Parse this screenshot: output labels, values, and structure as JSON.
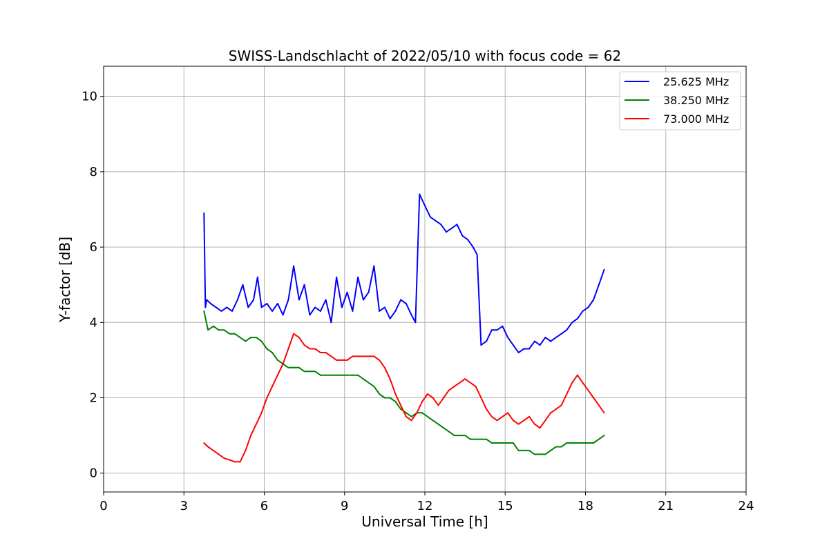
{
  "chart_data": {
    "type": "line",
    "title": "SWISS-Landschlacht of 2022/05/10 with focus code = 62",
    "xlabel": "Universal Time [h]",
    "ylabel": "Y-factor [dB]",
    "xlim": [
      0,
      24
    ],
    "ylim": [
      -0.5,
      10.8
    ],
    "xticks": [
      0,
      3,
      6,
      9,
      12,
      15,
      18,
      21,
      24
    ],
    "yticks": [
      0,
      2,
      4,
      6,
      8,
      10
    ],
    "grid": true,
    "legend_position": "top-right",
    "series": [
      {
        "name": "25.625 MHz",
        "color": "#0000ff",
        "x": [
          3.75,
          3.8,
          3.85,
          4.0,
          4.2,
          4.4,
          4.6,
          4.8,
          5.0,
          5.2,
          5.4,
          5.6,
          5.75,
          5.9,
          6.1,
          6.3,
          6.5,
          6.7,
          6.9,
          7.1,
          7.3,
          7.5,
          7.7,
          7.9,
          8.1,
          8.3,
          8.5,
          8.7,
          8.9,
          9.1,
          9.3,
          9.5,
          9.7,
          9.9,
          10.1,
          10.3,
          10.5,
          10.7,
          10.9,
          11.1,
          11.3,
          11.5,
          11.65,
          11.8,
          12.0,
          12.2,
          12.4,
          12.6,
          12.8,
          13.0,
          13.2,
          13.4,
          13.6,
          13.8,
          13.95,
          14.1,
          14.3,
          14.5,
          14.7,
          14.9,
          15.1,
          15.3,
          15.5,
          15.7,
          15.9,
          16.1,
          16.3,
          16.5,
          16.7,
          16.9,
          17.1,
          17.3,
          17.5,
          17.7,
          17.9,
          18.1,
          18.3,
          18.5,
          18.7
        ],
        "y": [
          6.9,
          4.4,
          4.6,
          4.5,
          4.4,
          4.3,
          4.4,
          4.3,
          4.6,
          5.0,
          4.4,
          4.6,
          5.2,
          4.4,
          4.5,
          4.3,
          4.5,
          4.2,
          4.6,
          5.5,
          4.6,
          5.0,
          4.2,
          4.4,
          4.3,
          4.6,
          4.0,
          5.2,
          4.4,
          4.8,
          4.3,
          5.2,
          4.6,
          4.8,
          5.5,
          4.3,
          4.4,
          4.1,
          4.3,
          4.6,
          4.5,
          4.2,
          4.0,
          7.4,
          7.1,
          6.8,
          6.7,
          6.6,
          6.4,
          6.5,
          6.6,
          6.3,
          6.2,
          6.0,
          5.8,
          3.4,
          3.5,
          3.8,
          3.8,
          3.9,
          3.6,
          3.4,
          3.2,
          3.3,
          3.3,
          3.5,
          3.4,
          3.6,
          3.5,
          3.6,
          3.7,
          3.8,
          4.0,
          4.1,
          4.3,
          4.4,
          4.6,
          5.0,
          5.4
        ]
      },
      {
        "name": "38.250 MHz",
        "color": "#008000",
        "x": [
          3.75,
          3.9,
          4.1,
          4.3,
          4.5,
          4.7,
          4.9,
          5.1,
          5.3,
          5.5,
          5.7,
          5.9,
          6.1,
          6.3,
          6.5,
          6.7,
          6.9,
          7.1,
          7.3,
          7.5,
          7.7,
          7.9,
          8.1,
          8.3,
          8.5,
          8.7,
          8.9,
          9.1,
          9.3,
          9.5,
          9.7,
          9.9,
          10.1,
          10.3,
          10.5,
          10.7,
          10.9,
          11.1,
          11.3,
          11.5,
          11.7,
          11.9,
          12.1,
          12.3,
          12.5,
          12.7,
          12.9,
          13.1,
          13.3,
          13.5,
          13.7,
          13.9,
          14.1,
          14.3,
          14.5,
          14.7,
          14.9,
          15.1,
          15.3,
          15.5,
          15.7,
          15.9,
          16.1,
          16.3,
          16.5,
          16.7,
          16.9,
          17.1,
          17.3,
          17.5,
          17.7,
          17.9,
          18.1,
          18.3,
          18.5,
          18.7
        ],
        "y": [
          4.3,
          3.8,
          3.9,
          3.8,
          3.8,
          3.7,
          3.7,
          3.6,
          3.5,
          3.6,
          3.6,
          3.5,
          3.3,
          3.2,
          3.0,
          2.9,
          2.8,
          2.8,
          2.8,
          2.7,
          2.7,
          2.7,
          2.6,
          2.6,
          2.6,
          2.6,
          2.6,
          2.6,
          2.6,
          2.6,
          2.5,
          2.4,
          2.3,
          2.1,
          2.0,
          2.0,
          1.9,
          1.7,
          1.6,
          1.5,
          1.6,
          1.6,
          1.5,
          1.4,
          1.3,
          1.2,
          1.1,
          1.0,
          1.0,
          1.0,
          0.9,
          0.9,
          0.9,
          0.9,
          0.8,
          0.8,
          0.8,
          0.8,
          0.8,
          0.6,
          0.6,
          0.6,
          0.5,
          0.5,
          0.5,
          0.6,
          0.7,
          0.7,
          0.8,
          0.8,
          0.8,
          0.8,
          0.8,
          0.8,
          0.9,
          1.0
        ]
      },
      {
        "name": "73.000 MHz",
        "color": "#ff0000",
        "x": [
          3.75,
          3.9,
          4.1,
          4.3,
          4.5,
          4.7,
          4.9,
          5.1,
          5.3,
          5.5,
          5.7,
          5.9,
          6.1,
          6.3,
          6.5,
          6.7,
          6.9,
          7.1,
          7.3,
          7.5,
          7.7,
          7.9,
          8.1,
          8.3,
          8.5,
          8.7,
          8.9,
          9.1,
          9.3,
          9.5,
          9.7,
          9.9,
          10.1,
          10.3,
          10.5,
          10.7,
          10.9,
          11.1,
          11.3,
          11.5,
          11.7,
          11.9,
          12.1,
          12.3,
          12.5,
          12.7,
          12.9,
          13.1,
          13.3,
          13.5,
          13.7,
          13.9,
          14.1,
          14.3,
          14.5,
          14.7,
          14.9,
          15.1,
          15.3,
          15.5,
          15.7,
          15.9,
          16.1,
          16.3,
          16.5,
          16.7,
          16.9,
          17.1,
          17.3,
          17.5,
          17.7,
          17.9,
          18.1,
          18.3,
          18.5,
          18.7
        ],
        "y": [
          0.8,
          0.7,
          0.6,
          0.5,
          0.4,
          0.35,
          0.3,
          0.3,
          0.6,
          1.0,
          1.3,
          1.6,
          2.0,
          2.3,
          2.6,
          2.9,
          3.3,
          3.7,
          3.6,
          3.4,
          3.3,
          3.3,
          3.2,
          3.2,
          3.1,
          3.0,
          3.0,
          3.0,
          3.1,
          3.1,
          3.1,
          3.1,
          3.1,
          3.0,
          2.8,
          2.5,
          2.1,
          1.8,
          1.5,
          1.4,
          1.6,
          1.9,
          2.1,
          2.0,
          1.8,
          2.0,
          2.2,
          2.3,
          2.4,
          2.5,
          2.4,
          2.3,
          2.0,
          1.7,
          1.5,
          1.4,
          1.5,
          1.6,
          1.4,
          1.3,
          1.4,
          1.5,
          1.3,
          1.2,
          1.4,
          1.6,
          1.7,
          1.8,
          2.1,
          2.4,
          2.6,
          2.4,
          2.2,
          2.0,
          1.8,
          1.6
        ]
      }
    ]
  }
}
